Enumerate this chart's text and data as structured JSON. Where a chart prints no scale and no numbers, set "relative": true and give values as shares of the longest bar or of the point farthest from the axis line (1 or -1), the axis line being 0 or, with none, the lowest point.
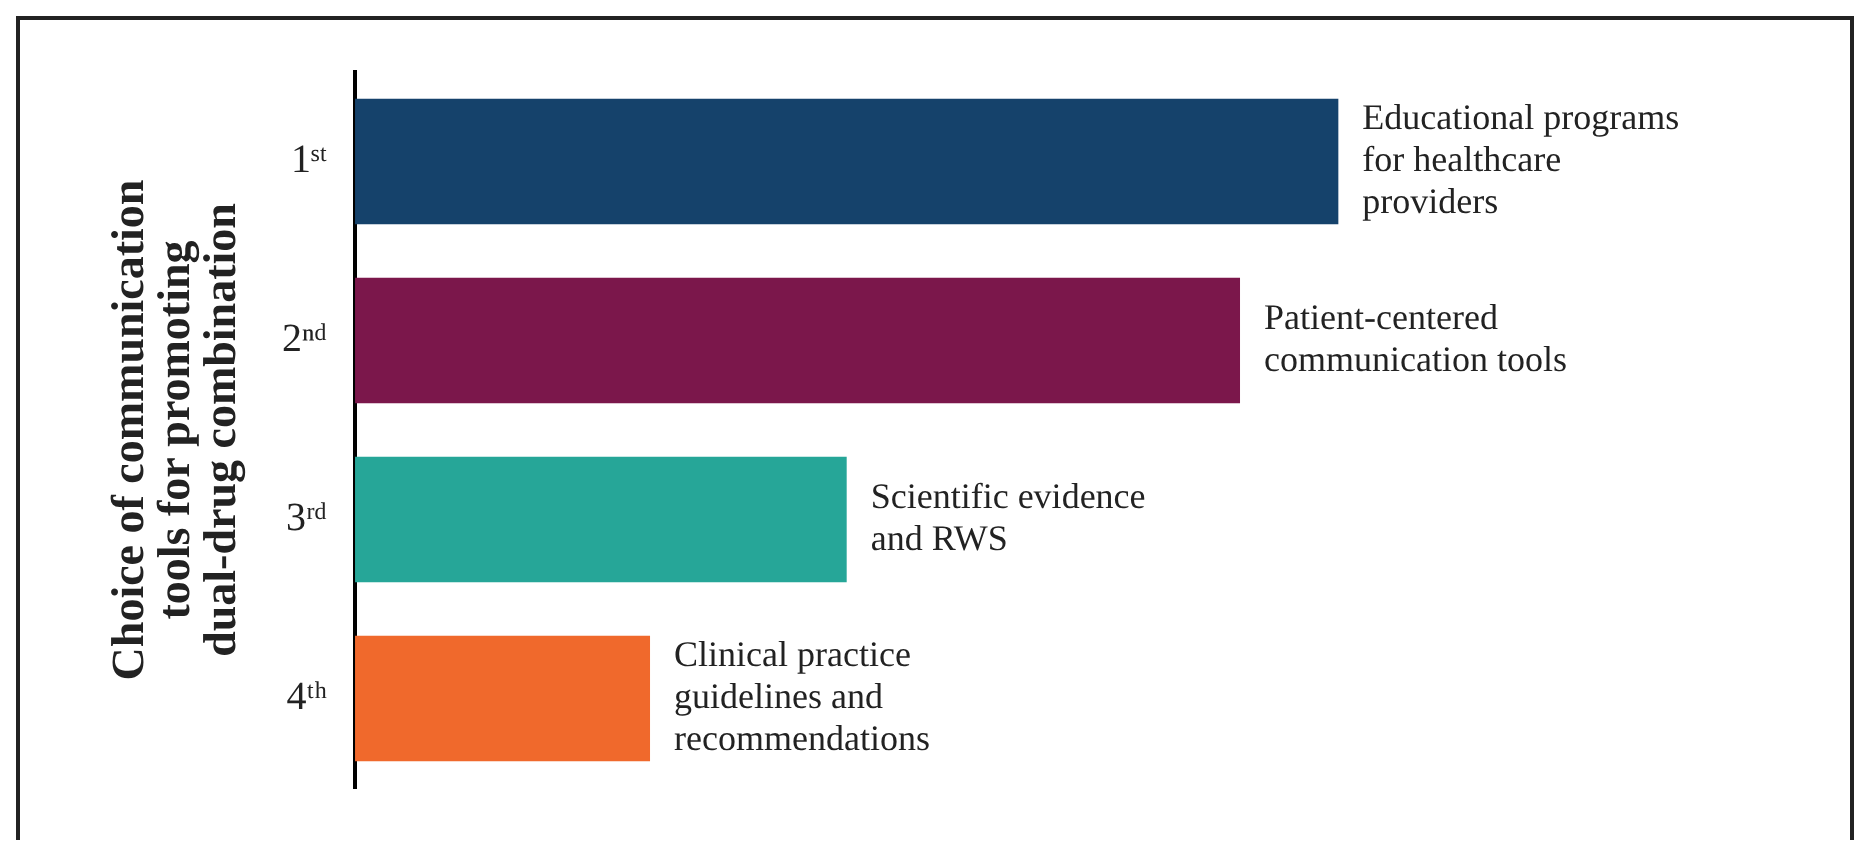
{
  "chart_data": {
    "type": "bar",
    "orientation": "horizontal",
    "relative": true,
    "ylabel": "Choice of communication\ntools for promoting\ndual-drug combination",
    "categories": [
      "1ˢᵗ",
      "2ⁿᵈ",
      "3ʳᵈ",
      "4ᵗʰ"
    ],
    "values": [
      1,
      0.9,
      0.5,
      0.3
    ],
    "colors": [
      "#15426b",
      "#7b174b",
      "#26a698",
      "#f0692c"
    ],
    "legend": false,
    "annotations": [
      {
        "text": "Educational programs\nfor healthcare\nproviders",
        "x": 1,
        "y": "1ˢᵗ"
      },
      {
        "text": "Patient-centered\ncommunication tools",
        "x": 0.9,
        "y": "2ⁿᵈ"
      },
      {
        "text": "Scientific evidence\nand RWS",
        "x": 0.5,
        "y": "3ʳᵈ"
      },
      {
        "text": "Clinical practice\nguidelines and\nrecommendations",
        "x": 0.3,
        "y": "4ᵗʰ"
      }
    ]
  }
}
